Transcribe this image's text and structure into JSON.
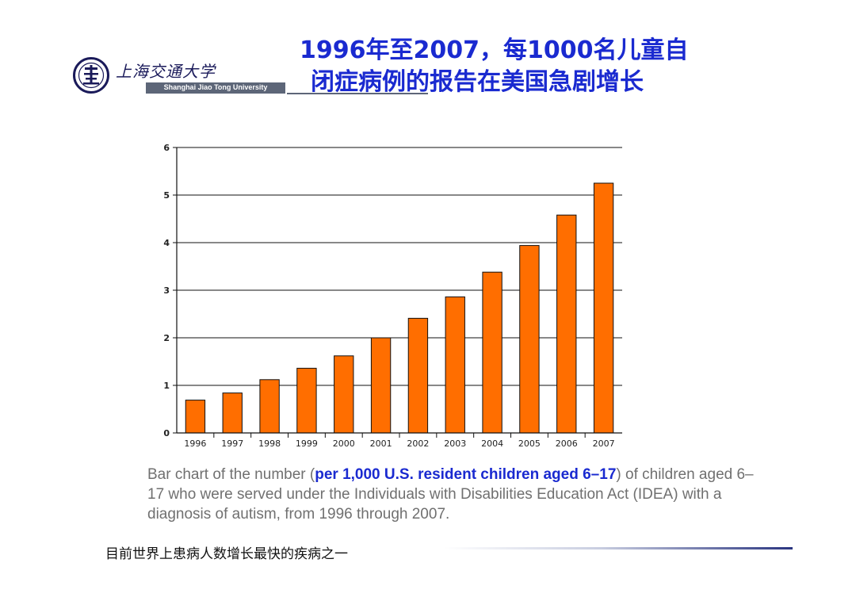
{
  "header": {
    "logo_cn": "上海交通大学",
    "logo_en": "Shanghai Jiao Tong University",
    "title_line1": "1996年至2007，每1000名儿童自",
    "title_line2": "闭症病例的报告在美国急剧增长",
    "title_color": "#1a2ad0"
  },
  "chart_data": {
    "type": "bar",
    "categories": [
      "1996",
      "1997",
      "1998",
      "1999",
      "2000",
      "2001",
      "2002",
      "2003",
      "2004",
      "2005",
      "2006",
      "2007"
    ],
    "values": [
      0.69,
      0.84,
      1.12,
      1.36,
      1.62,
      2.0,
      2.41,
      2.86,
      3.38,
      3.94,
      4.58,
      5.25
    ],
    "title": "",
    "xlabel": "",
    "ylabel": "",
    "ylim": [
      0,
      6
    ],
    "yticks": [
      0,
      1,
      2,
      3,
      4,
      5,
      6
    ],
    "grid": true,
    "bar_color": "#ff6e00",
    "bar_edge_color": "#111111"
  },
  "caption": {
    "pre": "Bar chart of the number (",
    "highlight": "per 1,000 U.S. resident children aged 6–17",
    "post": ") of children aged 6–17 who were served under the Individuals with Disabilities Education Act (IDEA) with a diagnosis of autism, from 1996 through 2007."
  },
  "footer": {
    "note": "目前世界上患病人数增长最快的疾病之一"
  }
}
